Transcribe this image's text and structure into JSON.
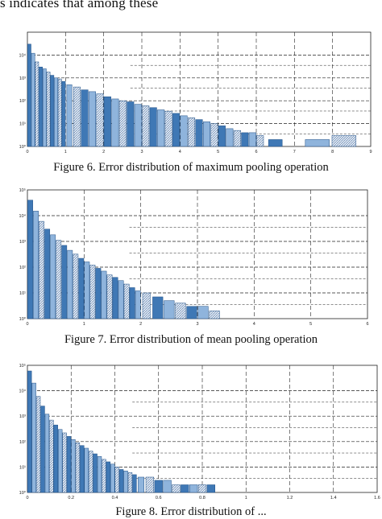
{
  "page": {
    "top_text": "s indicates that among these",
    "captions": [
      "Figure 6. Error distribution of maximum pooling operation",
      "Figure 7. Error distribution of mean pooling operation",
      "Figure 8. Error distribution of ..."
    ]
  },
  "colors": {
    "bar_primary": "#3f78b5",
    "bar_light": "#8fb4dc",
    "bar_hatch": "#c9d3df",
    "grid": "#222222"
  },
  "chart_data": [
    {
      "type": "bar",
      "title": "",
      "xlabel": "",
      "ylabel": "",
      "y_scale": "log",
      "xlim": [
        0,
        9
      ],
      "ylim": [
        1,
        100000
      ],
      "x_ticks": [
        "0",
        "1",
        "2",
        "3",
        "4",
        "5",
        "6",
        "7",
        "8",
        "9"
      ],
      "y_ticks": [
        "10^0",
        "10^1",
        "10^2",
        "10^3",
        "10^4"
      ],
      "x_tick_labels": [
        "0",
        "1",
        "2",
        "3",
        "4",
        "5",
        "6",
        "7",
        "8",
        "9"
      ],
      "y_tick_labels": [
        "10⁰",
        "10¹",
        "10²",
        "10³",
        "10⁴"
      ],
      "series": [
        {
          "x": [
            0.05,
            0.15,
            0.25,
            0.35,
            0.45,
            0.55,
            0.65,
            0.75,
            0.85,
            0.95,
            1.1,
            1.3,
            1.5,
            1.7,
            1.9,
            2.1,
            2.3,
            2.5,
            2.7,
            2.9,
            3.1,
            3.3,
            3.5,
            3.7,
            3.9,
            4.1,
            4.3,
            4.5,
            4.7,
            4.9,
            5.1,
            5.3,
            5.5,
            5.7,
            5.9,
            6.1,
            6.5,
            7.6,
            8.3
          ],
          "values": [
            30000,
            12000,
            5000,
            3000,
            2500,
            1800,
            1300,
            1000,
            900,
            700,
            500,
            400,
            300,
            250,
            200,
            150,
            120,
            100,
            90,
            70,
            60,
            50,
            40,
            35,
            28,
            22,
            18,
            15,
            12,
            10,
            8,
            6,
            5,
            4,
            4,
            3,
            2,
            2,
            3
          ]
        }
      ]
    },
    {
      "type": "bar",
      "title": "",
      "xlabel": "",
      "ylabel": "",
      "y_scale": "log",
      "xlim": [
        0,
        6
      ],
      "ylim": [
        1,
        100000
      ],
      "x_tick_labels": [
        "0",
        "1",
        "2",
        "3",
        "4",
        "5",
        "6"
      ],
      "y_tick_labels": [
        "10⁰",
        "10¹",
        "10²",
        "10³",
        "10⁴",
        "10⁵"
      ],
      "series": [
        {
          "x": [
            0.05,
            0.15,
            0.25,
            0.35,
            0.45,
            0.55,
            0.65,
            0.75,
            0.85,
            0.95,
            1.05,
            1.15,
            1.25,
            1.35,
            1.45,
            1.55,
            1.65,
            1.75,
            1.85,
            1.95,
            2.1,
            2.3,
            2.5,
            2.7,
            2.9,
            3.1,
            3.3
          ],
          "values": [
            40000,
            15000,
            6000,
            3000,
            1800,
            1100,
            700,
            450,
            320,
            220,
            160,
            120,
            90,
            70,
            50,
            40,
            30,
            22,
            16,
            12,
            10,
            7,
            5,
            4,
            3,
            3,
            2
          ]
        }
      ]
    },
    {
      "type": "bar",
      "title": "",
      "xlabel": "",
      "ylabel": "",
      "y_scale": "log",
      "xlim": [
        0,
        1.6
      ],
      "ylim": [
        1,
        100000
      ],
      "x_tick_labels": [
        "0",
        "0.2",
        "0.4",
        "0.6",
        "0.8",
        "1",
        "1.2",
        "1.4",
        "1.6"
      ],
      "y_tick_labels": [
        "10⁰",
        "10¹",
        "10²",
        "10³",
        "10⁴",
        "10⁵"
      ],
      "series": [
        {
          "x": [
            0.01,
            0.03,
            0.05,
            0.07,
            0.09,
            0.11,
            0.13,
            0.15,
            0.17,
            0.19,
            0.21,
            0.23,
            0.25,
            0.27,
            0.29,
            0.31,
            0.33,
            0.35,
            0.37,
            0.39,
            0.41,
            0.43,
            0.45,
            0.47,
            0.49,
            0.52,
            0.56,
            0.6,
            0.64,
            0.68,
            0.72,
            0.76,
            0.8,
            0.84
          ],
          "values": [
            60000,
            20000,
            6000,
            2500,
            1200,
            700,
            450,
            300,
            220,
            160,
            120,
            90,
            70,
            55,
            42,
            33,
            26,
            20,
            16,
            13,
            10,
            8,
            7,
            6,
            5,
            4,
            4,
            3,
            3,
            2,
            2,
            2,
            2,
            2
          ]
        }
      ]
    }
  ]
}
